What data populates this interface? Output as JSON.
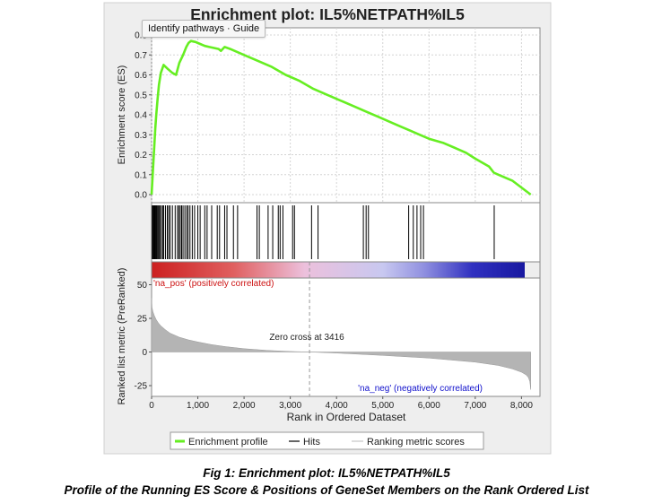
{
  "chart_data": {
    "type": "line",
    "title": "Enrichment plot: IL5%NETPATH%IL5",
    "xlabel": "Rank in Ordered Dataset",
    "xlim": [
      0,
      8400
    ],
    "x_ticks": [
      0,
      1000,
      2000,
      3000,
      4000,
      5000,
      6000,
      7000,
      8000
    ],
    "x_tick_labels": [
      "0",
      "1,000",
      "2,000",
      "3,000",
      "4,000",
      "5,000",
      "6,000",
      "7,000",
      "8,000"
    ],
    "es_panel": {
      "ylabel": "Enrichment score (ES)",
      "ylim": [
        0,
        0.8
      ],
      "y_ticks": [
        0.0,
        0.1,
        0.2,
        0.3,
        0.4,
        0.5,
        0.6,
        0.7,
        0.8
      ],
      "y_tick_labels": [
        "0.0",
        "0.1",
        "0.2",
        "0.3",
        "0.4",
        "0.5",
        "0.6",
        "0.7",
        "0.8"
      ],
      "grid": true,
      "series": [
        {
          "name": "Enrichment profile",
          "color": "#66ee22",
          "x": [
            0,
            20,
            40,
            60,
            80,
            100,
            130,
            160,
            200,
            260,
            350,
            450,
            530,
            600,
            680,
            750,
            800,
            850,
            950,
            1050,
            1150,
            1250,
            1350,
            1450,
            1500,
            1580,
            1700,
            1800,
            2000,
            2300,
            2600,
            2900,
            3200,
            3500,
            3800,
            4100,
            4400,
            4600,
            4900,
            5200,
            5400,
            5600,
            5800,
            6000,
            6300,
            6600,
            6800,
            7000,
            7300,
            7400,
            7500,
            7800,
            8200
          ],
          "y": [
            0.0,
            0.08,
            0.17,
            0.25,
            0.33,
            0.4,
            0.48,
            0.55,
            0.61,
            0.65,
            0.63,
            0.61,
            0.6,
            0.66,
            0.7,
            0.74,
            0.76,
            0.77,
            0.765,
            0.755,
            0.745,
            0.74,
            0.735,
            0.73,
            0.72,
            0.74,
            0.73,
            0.72,
            0.7,
            0.67,
            0.64,
            0.6,
            0.57,
            0.53,
            0.5,
            0.47,
            0.44,
            0.42,
            0.39,
            0.36,
            0.34,
            0.32,
            0.3,
            0.28,
            0.26,
            0.23,
            0.21,
            0.18,
            0.14,
            0.11,
            0.1,
            0.07,
            0.0
          ]
        }
      ]
    },
    "hits": {
      "name": "Hits",
      "positions": [
        15,
        30,
        45,
        60,
        75,
        90,
        105,
        120,
        140,
        160,
        180,
        210,
        240,
        260,
        300,
        340,
        370,
        400,
        450,
        510,
        560,
        590,
        620,
        650,
        680,
        720,
        760,
        790,
        830,
        880,
        930,
        1000,
        1050,
        1150,
        1200,
        1300,
        1420,
        1470,
        1580,
        1630,
        1770,
        1860,
        2280,
        2330,
        2520,
        2620,
        2740,
        2780,
        2840,
        3050,
        3090,
        3460,
        3600,
        4580,
        4640,
        4690,
        5560,
        5660,
        5740,
        5820,
        5880,
        7410
      ]
    },
    "ranking_bar": {
      "colors": [
        "#cc2020",
        "#e06060",
        "#ecc0dc",
        "#c8c8f0",
        "#9090e0",
        "#3030c0",
        "#1818a0"
      ],
      "stops": [
        0,
        0.22,
        0.41,
        0.62,
        0.73,
        0.86,
        1.0
      ],
      "label_pos": "'na_pos' (positively correlated)",
      "label_neg": "'na_neg' (negatively correlated)"
    },
    "metric_panel": {
      "ylabel": "Ranked list metric (PreRanked)",
      "ylim": [
        -33,
        55
      ],
      "y_ticks": [
        -25,
        0,
        25,
        50
      ],
      "y_tick_labels": [
        "-25",
        "0",
        "25",
        "50"
      ],
      "zero_cross_rank": 3416,
      "zero_cross_label": "Zero cross at 3416",
      "series": {
        "name": "Ranking metric scores",
        "color": "#aaaaaa",
        "x": [
          0,
          10,
          30,
          60,
          100,
          150,
          200,
          300,
          400,
          600,
          800,
          1000,
          1300,
          1600,
          2000,
          2500,
          3000,
          3416,
          4000,
          5000,
          6000,
          7000,
          7500,
          7800,
          8000,
          8100,
          8150,
          8180,
          8200
        ],
        "y": [
          40,
          33,
          30,
          27,
          24,
          21.5,
          19.5,
          16.5,
          14,
          11,
          9,
          7.5,
          5.5,
          4,
          2.5,
          1.2,
          0.4,
          0,
          -0.8,
          -2.5,
          -4.5,
          -7.5,
          -10,
          -12.5,
          -15,
          -17,
          -19,
          -22,
          -28
        ]
      }
    },
    "legend": {
      "placement": "bottom",
      "entries": [
        "Enrichment profile",
        "Hits",
        "Ranking metric scores"
      ]
    }
  },
  "tooltip": {
    "text": "Identify pathways · Guide"
  },
  "caption": {
    "line1": "Fig 1: Enrichment plot: IL5%NETPATH%IL5",
    "line2": "Profile of the Running ES Score & Positions of GeneSet Members on the Rank Ordered List"
  }
}
